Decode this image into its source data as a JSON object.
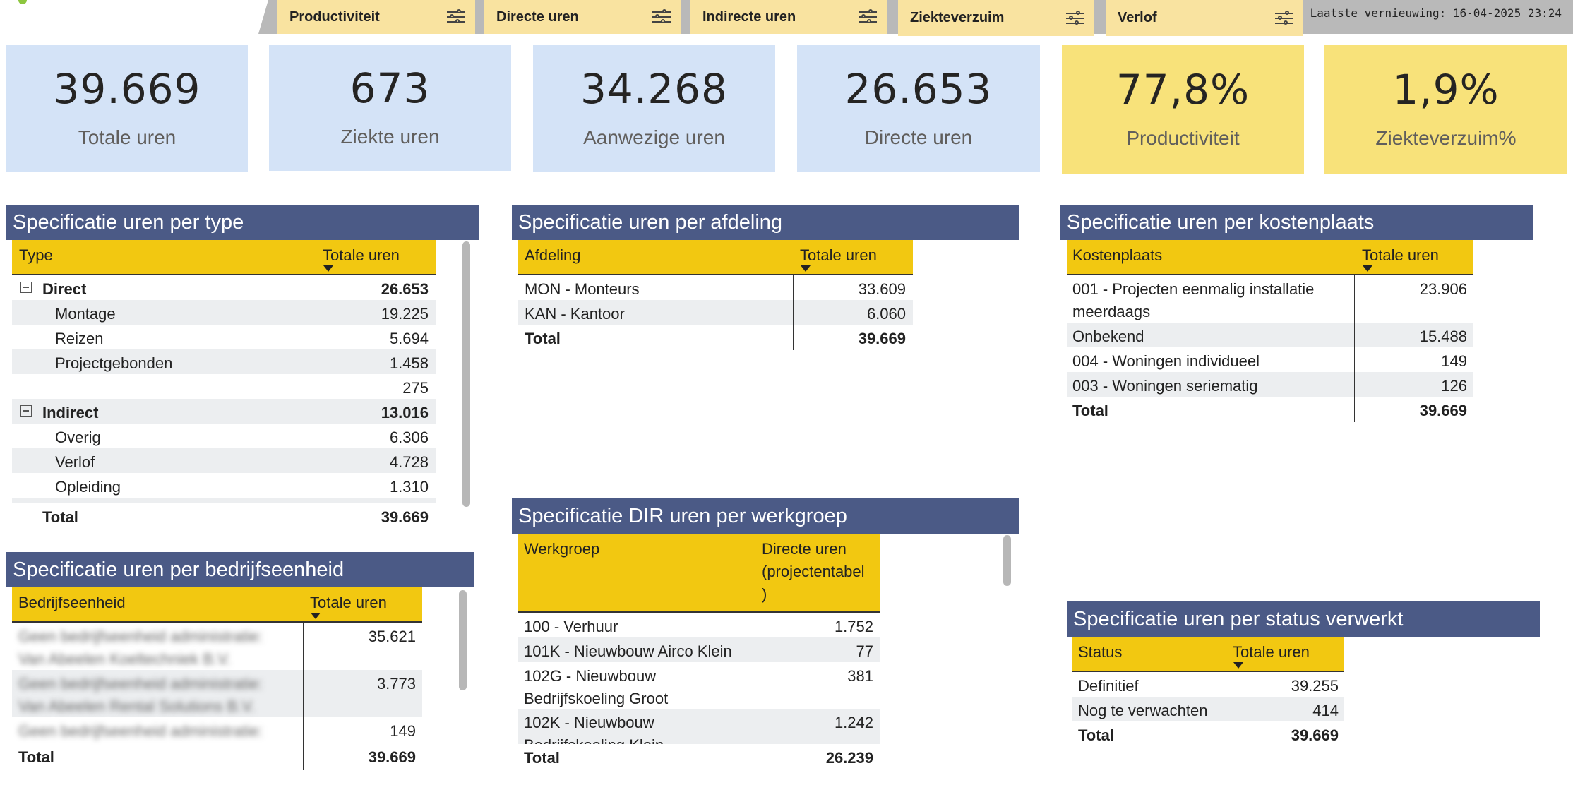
{
  "filters": {
    "slicers": [
      {
        "label": "Productiviteit"
      },
      {
        "label": "Directe uren"
      },
      {
        "label": "Indirecte uren"
      },
      {
        "label": "Ziekteverzuim"
      },
      {
        "label": "Verlof"
      }
    ],
    "refresh_text": "Laatste vernieuwing: 16-04-2025 23:24"
  },
  "kpis": [
    {
      "value": "39.669",
      "label": "Totale uren"
    },
    {
      "value": "673",
      "label": "Ziekte uren"
    },
    {
      "value": "34.268",
      "label": "Aanwezige uren"
    },
    {
      "value": "26.653",
      "label": "Directe uren"
    },
    {
      "value": "77,8%",
      "label": "Productiviteit"
    },
    {
      "value": "1,9%",
      "label": "Ziekteverzuim%"
    }
  ],
  "type_table": {
    "title": "Specificatie uren per type",
    "col1": "Type",
    "col2": "Totale uren",
    "rows": [
      {
        "label": "Direct",
        "value": "26.653"
      },
      {
        "label": "Montage",
        "value": "19.225"
      },
      {
        "label": "Reizen",
        "value": "5.694"
      },
      {
        "label": "Projectgebonden",
        "value": "1.458"
      },
      {
        "label": "",
        "value": "275"
      },
      {
        "label": "Indirect",
        "value": "13.016"
      },
      {
        "label": "Overig",
        "value": "6.306"
      },
      {
        "label": "Verlof",
        "value": "4.728"
      },
      {
        "label": "Opleiding",
        "value": "1.310"
      }
    ],
    "total_label": "Total",
    "total_value": "39.669"
  },
  "afdeling_table": {
    "title": "Specificatie uren per afdeling",
    "col1": "Afdeling",
    "col2": "Totale uren",
    "rows": [
      {
        "label": "MON - Monteurs",
        "value": "33.609"
      },
      {
        "label": "KAN - Kantoor",
        "value": "6.060"
      }
    ],
    "total_label": "Total",
    "total_value": "39.669"
  },
  "kostenplaats_table": {
    "title": "Specificatie uren per kostenplaats",
    "col1": "Kostenplaats",
    "col2": "Totale uren",
    "rows": [
      {
        "label_line1": "001 - Projecten eenmalig installatie",
        "label_line2": "meerdaags",
        "value": "23.906"
      },
      {
        "label": "Onbekend",
        "value": "15.488"
      },
      {
        "label": "004 - Woningen individueel",
        "value": "149"
      },
      {
        "label": "003 - Woningen seriematig",
        "value": "126"
      }
    ],
    "total_label": "Total",
    "total_value": "39.669"
  },
  "werkgroep_table": {
    "title": "Specificatie DIR uren per werkgroep",
    "col1": "Werkgroep",
    "col2_line1": "Directe uren",
    "col2_line2": "(projectentabel",
    "col2_line3": ")",
    "rows": [
      {
        "label": "100 - Verhuur",
        "value": "1.752"
      },
      {
        "label": "101K - Nieuwbouw Airco Klein",
        "value": "77"
      },
      {
        "label_line1": "102G - Nieuwbouw",
        "label_line2": "Bedrijfskoeling Groot",
        "value": "381"
      },
      {
        "label_line1": "102K - Nieuwbouw",
        "label_line2": "Bedrijfskoeling Klein",
        "value": "1.242"
      }
    ],
    "total_label": "Total",
    "total_value": "26.239"
  },
  "bedrijfseenheid_table": {
    "title": "Specificatie uren per bedrijfseenheid",
    "col1": "Bedrijfseenheid",
    "col2": "Totale uren",
    "rows": [
      {
        "label_line1": "Geen bedrijfseenheid administratie:",
        "label_line2": "Van Abeelen Koeltechniek B.V.",
        "value": "35.621"
      },
      {
        "label_line1": "Geen bedrijfseenheid administratie:",
        "label_line2": "Van Abeelen Rental Solutions B.V.",
        "value": "3.773"
      },
      {
        "label": "Geen bedrijfseenheid administratie:",
        "value": "149"
      }
    ],
    "total_label": "Total",
    "total_value": "39.669"
  },
  "status_table": {
    "title": "Specificatie uren per status verwerkt",
    "col1": "Status",
    "col2": "Totale uren",
    "rows": [
      {
        "label": "Definitief",
        "value": "39.255"
      },
      {
        "label": "Nog te verwachten",
        "value": "414"
      }
    ],
    "total_label": "Total",
    "total_value": "39.669"
  }
}
